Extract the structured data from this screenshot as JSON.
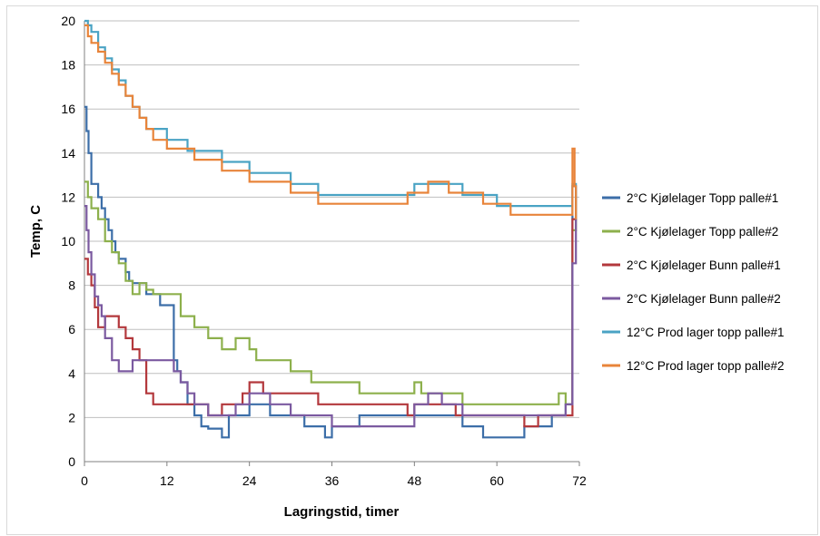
{
  "chart_data": {
    "type": "line",
    "xlabel": "Lagringstid, timer",
    "ylabel": "Temp, C",
    "xlim": [
      0,
      72
    ],
    "ylim": [
      0,
      20
    ],
    "xticks": [
      0,
      12,
      24,
      36,
      48,
      60,
      72
    ],
    "yticks": [
      0,
      2,
      4,
      6,
      8,
      10,
      12,
      14,
      16,
      18,
      20
    ],
    "grid": "horizontal",
    "legend_position": "right",
    "series": [
      {
        "name": "2°C Kjølelager Topp palle#1",
        "color": "#3c6ea8",
        "x": [
          0,
          0.3,
          0.6,
          1,
          2,
          2.5,
          3,
          3.5,
          4,
          4.5,
          5,
          6,
          6.5,
          7,
          8,
          9,
          10,
          11,
          12.5,
          13,
          13.5,
          14,
          15,
          16,
          17,
          18,
          20,
          21,
          22,
          24,
          26,
          27,
          28,
          30,
          32,
          34,
          35,
          36,
          38,
          40,
          45,
          48,
          50,
          52,
          55,
          58,
          60,
          62,
          64,
          68,
          70,
          71,
          71.5
        ],
        "y": [
          16.1,
          15,
          14,
          12.6,
          12,
          11.5,
          11,
          10.5,
          10,
          9.5,
          9.2,
          8.6,
          8.2,
          8.1,
          8.1,
          7.6,
          7.6,
          7.1,
          7.1,
          4.6,
          4.1,
          3.6,
          2.6,
          2.1,
          1.6,
          1.5,
          1.1,
          2.1,
          2.1,
          2.6,
          2.6,
          2.1,
          2.1,
          2.1,
          1.6,
          1.6,
          1.1,
          1.6,
          1.6,
          2.1,
          2.1,
          2.1,
          2.1,
          2.1,
          1.6,
          1.1,
          1.1,
          1.1,
          1.6,
          2.1,
          2.6,
          12.5,
          11
        ]
      },
      {
        "name": "2°C Kjølelager Topp palle#2",
        "color": "#8db04c",
        "x": [
          0,
          0.5,
          1,
          2,
          3,
          4,
          5,
          6,
          7,
          8,
          9,
          10,
          12,
          14,
          16,
          18,
          20,
          22,
          24,
          25,
          27,
          30,
          33,
          36,
          40,
          45,
          48,
          49,
          50,
          55,
          60,
          65,
          68,
          69,
          70,
          71,
          71.5
        ],
        "y": [
          12.7,
          12,
          11.5,
          11,
          10,
          9.5,
          9,
          8.2,
          7.6,
          8.1,
          7.8,
          7.6,
          7.6,
          6.6,
          6.1,
          5.6,
          5.1,
          5.6,
          5.1,
          4.6,
          4.6,
          4.1,
          3.6,
          3.6,
          3.1,
          3.1,
          3.6,
          3.1,
          3.1,
          2.6,
          2.6,
          2.6,
          2.6,
          3.1,
          2.6,
          10.5,
          12
        ]
      },
      {
        "name": "2°C Kjølelager Bunn palle#1",
        "color": "#b3383c",
        "x": [
          0,
          0.5,
          1,
          1.5,
          2,
          3,
          4,
          5,
          6,
          7,
          8,
          9,
          10,
          12,
          14,
          16,
          18,
          20,
          22,
          23,
          24,
          26,
          28,
          30,
          34,
          36,
          40,
          46,
          47,
          48,
          50,
          52,
          54,
          58,
          62,
          64,
          66,
          68,
          70,
          71,
          71.5
        ],
        "y": [
          9.2,
          8.5,
          8,
          7,
          6.1,
          6.6,
          6.6,
          6.1,
          5.6,
          5.1,
          4.6,
          3.1,
          2.6,
          2.6,
          2.6,
          2.6,
          2.1,
          2.6,
          2.6,
          3.1,
          3.6,
          3.1,
          3.1,
          3.1,
          2.6,
          2.6,
          2.6,
          2.6,
          2.1,
          2.6,
          2.6,
          2.6,
          2.1,
          2.1,
          2.1,
          1.6,
          2.1,
          2.1,
          2.1,
          11,
          12
        ]
      },
      {
        "name": "2°C Kjølelager Bunn palle#2",
        "color": "#7b5aa0",
        "x": [
          0,
          0.3,
          0.6,
          1,
          1.5,
          2,
          2.5,
          3,
          4,
          5,
          6,
          7,
          8,
          12,
          13,
          14,
          15,
          16,
          18,
          20,
          22,
          24,
          25,
          27,
          28,
          30,
          32,
          36,
          40,
          45,
          48,
          50,
          52,
          55,
          58,
          60,
          64,
          68,
          70,
          71,
          71.5
        ],
        "y": [
          11.6,
          10.5,
          9.5,
          8.5,
          7.5,
          7.1,
          6.6,
          5.6,
          4.6,
          4.1,
          4.1,
          4.6,
          4.6,
          4.6,
          4.1,
          3.6,
          3.1,
          2.6,
          2.1,
          2.1,
          2.6,
          3.1,
          3.1,
          2.6,
          2.6,
          2.1,
          2.1,
          1.6,
          1.6,
          1.6,
          2.6,
          3.1,
          2.6,
          2.1,
          2.1,
          2.1,
          2.1,
          2.1,
          2.6,
          9,
          11
        ]
      },
      {
        "name": "12°C Prod lager topp palle#1",
        "color": "#4aa3c4",
        "x": [
          0,
          0.5,
          1,
          2,
          3,
          4,
          5,
          6,
          7,
          8,
          9,
          10,
          12,
          13,
          15,
          17,
          20,
          24,
          28,
          30,
          34,
          36,
          40,
          44,
          48,
          50,
          52,
          55,
          58,
          60,
          62,
          65,
          68,
          70,
          71,
          71.5
        ],
        "y": [
          20,
          19.8,
          19.5,
          18.8,
          18.3,
          17.8,
          17.3,
          16.6,
          16.1,
          15.6,
          15.1,
          15.1,
          14.6,
          14.6,
          14.1,
          14.1,
          13.6,
          13.1,
          13.1,
          12.6,
          12.1,
          12.1,
          12.1,
          12.1,
          12.6,
          12.6,
          12.6,
          12.1,
          12.1,
          11.6,
          11.6,
          11.6,
          11.6,
          11.6,
          12.6,
          11
        ]
      },
      {
        "name": "12°C Prod lager topp palle#2",
        "color": "#e8843a",
        "x": [
          0,
          0.5,
          1,
          2,
          3,
          4,
          5,
          6,
          7,
          8,
          9,
          10,
          12,
          14,
          16,
          18,
          20,
          24,
          28,
          30,
          34,
          36,
          40,
          44,
          47,
          50,
          53,
          55,
          58,
          60,
          62,
          65,
          68,
          70,
          71,
          71.3,
          71.5
        ],
        "y": [
          19.8,
          19.3,
          19,
          18.6,
          18.1,
          17.6,
          17.1,
          16.6,
          16.1,
          15.6,
          15.1,
          14.6,
          14.2,
          14.2,
          13.7,
          13.7,
          13.2,
          12.7,
          12.7,
          12.2,
          11.7,
          11.7,
          11.7,
          11.7,
          12.2,
          12.7,
          12.2,
          12.2,
          11.7,
          11.7,
          11.2,
          11.2,
          11.2,
          11.2,
          14.2,
          12.5,
          11
        ]
      }
    ]
  }
}
